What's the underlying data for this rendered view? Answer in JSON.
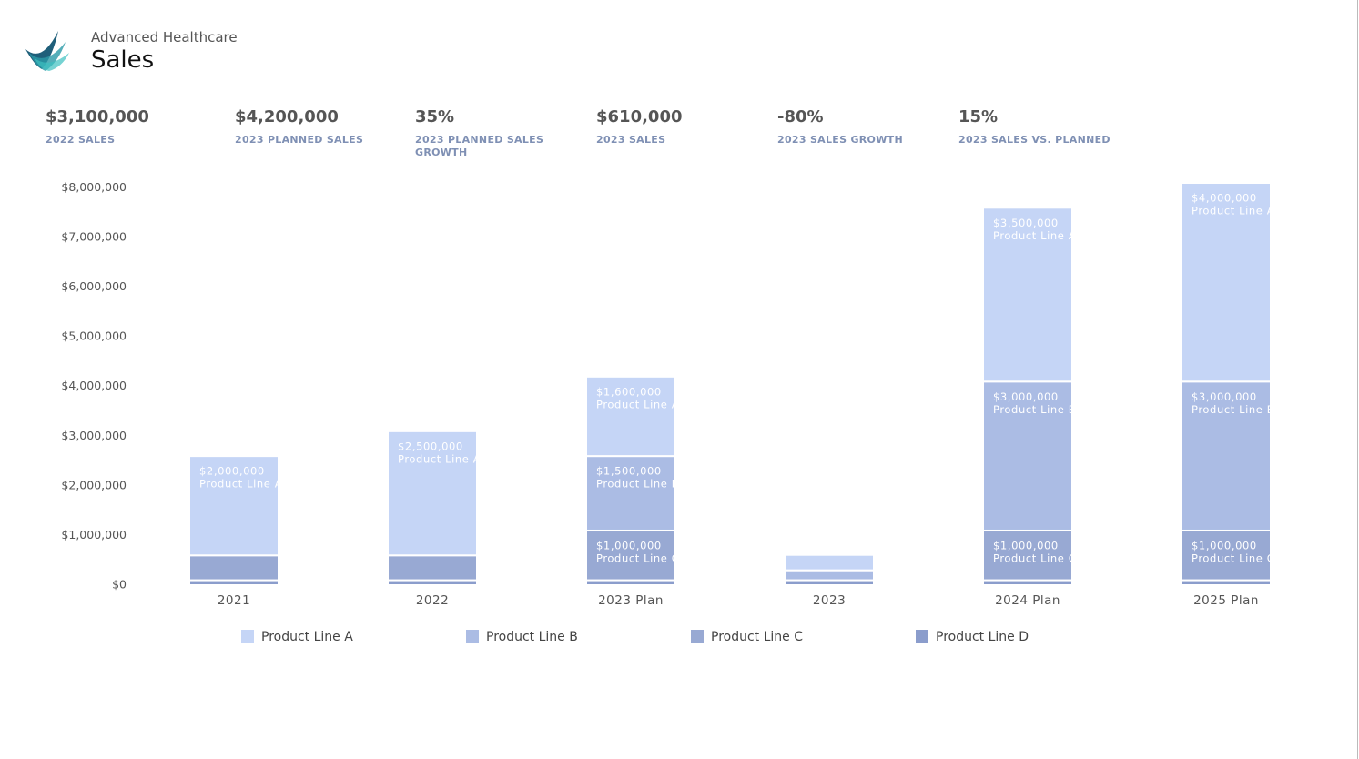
{
  "header": {
    "subtitle": "Advanced Healthcare",
    "title": "Sales"
  },
  "kpis": [
    {
      "value": "$3,100,000",
      "label": "2022 SALES"
    },
    {
      "value": "$4,200,000",
      "label": "2023 PLANNED SALES"
    },
    {
      "value": "35%",
      "label": "2023 PLANNED SALES GROWTH"
    },
    {
      "value": "$610,000",
      "label": "2023 SALES"
    },
    {
      "value": "-80%",
      "label": "2023 SALES GROWTH"
    },
    {
      "value": "15%",
      "label": "2023 SALES VS. PLANNED"
    }
  ],
  "chart_data": {
    "type": "stacked_bar",
    "categories": [
      "2021",
      "2022",
      "2023 Plan",
      "2023",
      "2024 Plan",
      "2025 Plan"
    ],
    "series": [
      {
        "name": "Product Line A",
        "color": "#c5d5f6",
        "values": [
          2000000,
          2500000,
          1600000,
          310000,
          3500000,
          4000000
        ],
        "value_labels": [
          "$2,000,000",
          "$2,500,000",
          "$1,600,000",
          null,
          "$3,500,000",
          "$4,000,000"
        ]
      },
      {
        "name": "Product Line B",
        "color": "#abbce4",
        "values": [
          0,
          0,
          1500000,
          200000,
          3000000,
          3000000
        ],
        "value_labels": [
          null,
          null,
          "$1,500,000",
          null,
          "$3,000,000",
          "$3,000,000"
        ]
      },
      {
        "name": "Product Line C",
        "color": "#98a9d3",
        "values": [
          500000,
          500000,
          1000000,
          0,
          1000000,
          1000000
        ],
        "value_labels": [
          null,
          null,
          "$1,000,000",
          null,
          "$1,000,000",
          "$1,000,000"
        ]
      },
      {
        "name": "Product Line D",
        "color": "#8b9dcc",
        "values": [
          100000,
          100000,
          100000,
          100000,
          100000,
          100000
        ],
        "value_labels": [
          null,
          null,
          null,
          null,
          null,
          null
        ]
      }
    ],
    "ylim": [
      0,
      8100000
    ],
    "yticks": [
      {
        "value": 0,
        "label": "$0"
      },
      {
        "value": 1000000,
        "label": "$1,000,000"
      },
      {
        "value": 2000000,
        "label": "$2,000,000"
      },
      {
        "value": 3000000,
        "label": "$3,000,000"
      },
      {
        "value": 4000000,
        "label": "$4,000,000"
      },
      {
        "value": 5000000,
        "label": "$5,000,000"
      },
      {
        "value": 6000000,
        "label": "$6,000,000"
      },
      {
        "value": 7000000,
        "label": "$7,000,000"
      },
      {
        "value": 8000000,
        "label": "$8,000,000"
      }
    ],
    "grid": false
  }
}
